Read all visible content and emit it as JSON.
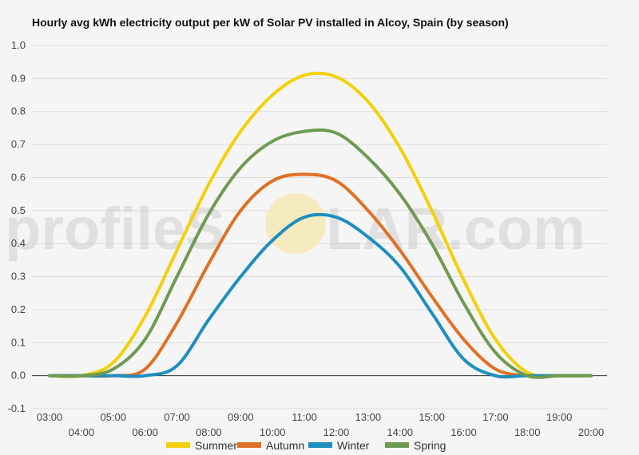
{
  "chart_data": {
    "type": "line",
    "title": "Hourly avg kWh electricity output per kW of Solar PV installed in Alcoy, Spain (by season)",
    "xlabel": "",
    "ylabel": "",
    "ylim": [
      -0.1,
      1.0
    ],
    "y_ticks": [
      "-0.1",
      "0.0",
      "0.1",
      "0.2",
      "0.3",
      "0.4",
      "0.5",
      "0.6",
      "0.7",
      "0.8",
      "0.9",
      "1.0"
    ],
    "x_ticks": [
      "03:00",
      "04:00",
      "05:00",
      "06:00",
      "07:00",
      "08:00",
      "09:00",
      "10:00",
      "11:00",
      "12:00",
      "13:00",
      "14:00",
      "15:00",
      "16:00",
      "17:00",
      "18:00",
      "19:00",
      "20:00"
    ],
    "x": [
      3,
      4,
      5,
      6,
      7,
      8,
      9,
      10,
      11,
      12,
      13,
      14,
      15,
      16,
      17,
      18,
      19,
      20
    ],
    "grid": true,
    "legend_position": "bottom",
    "series": [
      {
        "name": "Summer",
        "color": "#f2d10a",
        "values": [
          0.0,
          0.0,
          0.04,
          0.18,
          0.38,
          0.58,
          0.74,
          0.85,
          0.91,
          0.905,
          0.83,
          0.69,
          0.5,
          0.29,
          0.11,
          0.01,
          0.0,
          0.0
        ]
      },
      {
        "name": "Autumn",
        "color": "#e07025",
        "values": [
          0.0,
          0.0,
          0.0,
          0.02,
          0.16,
          0.34,
          0.5,
          0.59,
          0.61,
          0.59,
          0.5,
          0.38,
          0.24,
          0.11,
          0.02,
          0.0,
          0.0,
          0.0
        ]
      },
      {
        "name": "Winter",
        "color": "#1e8fbf",
        "values": [
          0.0,
          0.0,
          0.0,
          0.0,
          0.03,
          0.17,
          0.3,
          0.41,
          0.48,
          0.48,
          0.42,
          0.33,
          0.19,
          0.05,
          0.0,
          0.0,
          0.0,
          0.0
        ]
      },
      {
        "name": "Spring",
        "color": "#6f9a52",
        "values": [
          0.0,
          0.0,
          0.02,
          0.11,
          0.3,
          0.49,
          0.63,
          0.71,
          0.74,
          0.735,
          0.66,
          0.55,
          0.4,
          0.22,
          0.07,
          0.0,
          0.0,
          0.0
        ]
      }
    ]
  },
  "watermark": {
    "text_left": "profileS",
    "text_right": "LAR.com",
    "sun_color": "#f7e7a8"
  }
}
